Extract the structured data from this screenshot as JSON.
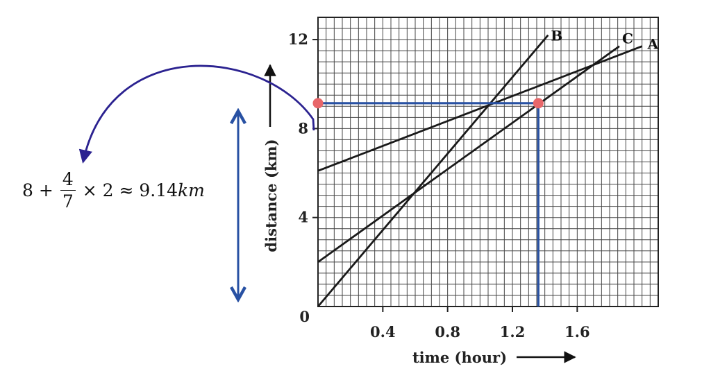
{
  "chart_data": {
    "type": "line",
    "xlabel": "time (hour)",
    "ylabel": "distance (km)",
    "xlim": [
      0,
      2.1
    ],
    "ylim": [
      0,
      13
    ],
    "x_ticks": [
      0.4,
      0.8,
      1.2,
      1.6
    ],
    "y_ticks": [
      4,
      8,
      12
    ],
    "origin_label": "0",
    "grid": true,
    "series": [
      {
        "name": "A",
        "x": [
          0,
          2.0
        ],
        "y": [
          6.1,
          11.7
        ]
      },
      {
        "name": "B",
        "x": [
          0,
          1.42
        ],
        "y": [
          0,
          12.2
        ]
      },
      {
        "name": "C",
        "x": [
          0,
          1.86
        ],
        "y": [
          2.0,
          11.7
        ]
      }
    ],
    "annotations": {
      "marked_points": [
        {
          "x": 0,
          "y": 9.14
        },
        {
          "x": 1.36,
          "y": 9.14
        }
      ],
      "formula": {
        "lead": "8 +",
        "numerator": "4",
        "denominator": "7",
        "tail": "× 2 ≈ 9.14",
        "unit": "km"
      }
    },
    "colors": {
      "series": "#1a1a1a",
      "guide": "#2851a3",
      "marker": "#e8676a",
      "arrow": "#2b2290"
    }
  }
}
